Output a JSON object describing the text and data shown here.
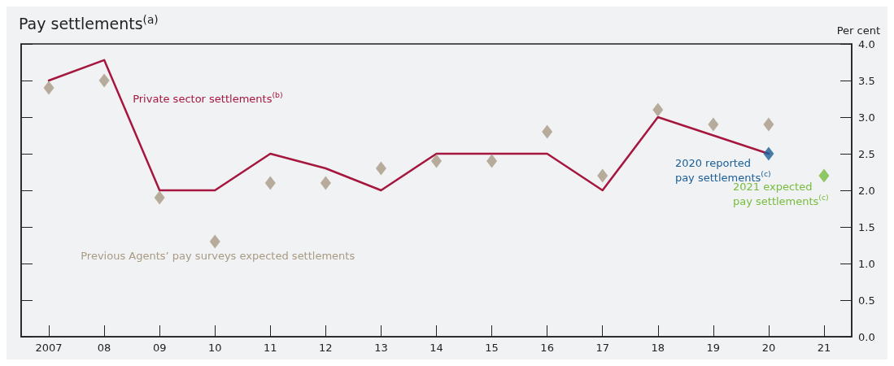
{
  "chart_data": {
    "type": "line",
    "title": "Pay settlements$^{(a)}$",
    "ylabel": "Per cent",
    "categories": [
      "2007",
      "08",
      "09",
      "10",
      "11",
      "12",
      "13",
      "14",
      "15",
      "16",
      "17",
      "18",
      "19",
      "20",
      "21"
    ],
    "series": [
      {
        "name": "Private sector settlements$^{(b)}$",
        "color": "#a5173f",
        "marker": "none",
        "line_style": "solid",
        "values": [
          3.5,
          3.78,
          2.0,
          2.0,
          2.5,
          2.3,
          2.0,
          2.5,
          2.5,
          2.5,
          2.0,
          3.0,
          2.75,
          2.5,
          null
        ]
      },
      {
        "name": "Previous Agents’ pay surveys expected settlements",
        "type": "scatter",
        "color": "#a99a84",
        "marker": "diamond",
        "values": [
          3.4,
          3.5,
          1.9,
          1.3,
          2.1,
          2.1,
          2.3,
          2.4,
          2.4,
          2.8,
          2.2,
          3.1,
          2.9,
          2.9,
          null
        ]
      },
      {
        "name": "2020 reported pay settlements$^{(c)}$",
        "type": "scatter",
        "color": "#1a5e96",
        "marker": "diamond",
        "values": [
          null,
          null,
          null,
          null,
          null,
          null,
          null,
          null,
          null,
          null,
          null,
          null,
          null,
          2.5,
          null
        ]
      },
      {
        "name": "2021 expected pay settlements$^{(c)}$",
        "type": "scatter",
        "color": "#77bc3f",
        "marker": "diamond",
        "values": [
          null,
          null,
          null,
          null,
          null,
          null,
          null,
          null,
          null,
          null,
          null,
          null,
          null,
          null,
          2.2
        ]
      }
    ],
    "ylim": [
      0,
      4
    ],
    "yticks": [
      {
        "value": 0,
        "label": "0.0"
      },
      0.5,
      {
        "value": 1,
        "label": "1.0"
      },
      1.5,
      {
        "value": 2,
        "label": "2.0"
      },
      2.5,
      {
        "value": 3,
        "label": "3.0"
      },
      3.5,
      {
        "value": 4,
        "label": "4.0"
      }
    ],
    "grid": false,
    "legend": false
  }
}
